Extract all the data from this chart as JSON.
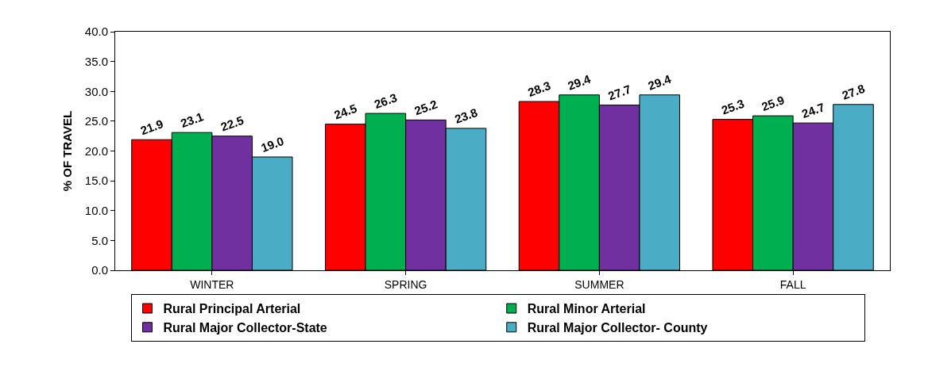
{
  "chart_data": {
    "type": "bar",
    "ylabel": "% OF TRAVEL",
    "categories": [
      "WINTER",
      "SPRING",
      "SUMMER",
      "FALL"
    ],
    "series": [
      {
        "name": "Rural Principal Arterial",
        "color": "#ff0000",
        "values": [
          21.9,
          24.5,
          28.3,
          25.3
        ],
        "value_labels": [
          "21.9",
          "24.5",
          "28.3",
          "25.3"
        ]
      },
      {
        "name": "Rural Minor Arterial",
        "color": "#00b050",
        "values": [
          23.1,
          26.3,
          29.4,
          25.9
        ],
        "value_labels": [
          "23.1",
          "26.3",
          "29.4",
          "25.9"
        ]
      },
      {
        "name": "Rural Major Collector-State",
        "color": "#7030a0",
        "values": [
          22.5,
          25.2,
          27.7,
          24.7
        ],
        "value_labels": [
          "22.5",
          "25.2",
          "27.7",
          "24.7"
        ]
      },
      {
        "name": "Rural Major Collector- County",
        "color": "#4bacc6",
        "values": [
          19.0,
          23.8,
          29.4,
          27.8
        ],
        "value_labels": [
          "19.0",
          "23.8",
          "29.4",
          "27.8"
        ]
      }
    ],
    "ylim": [
      0,
      40
    ],
    "yticks": [
      {
        "value": 0,
        "label": "0.0"
      },
      {
        "value": 5,
        "label": "5.0"
      },
      {
        "value": 10,
        "label": "10.0"
      },
      {
        "value": 15,
        "label": "15.0"
      },
      {
        "value": 20,
        "label": "20.0"
      },
      {
        "value": 25,
        "label": "25.0"
      },
      {
        "value": 30,
        "label": "30.0"
      },
      {
        "value": 35,
        "label": "35.0"
      },
      {
        "value": 40,
        "label": "40.0"
      }
    ],
    "grid": false,
    "legend": "bottom"
  }
}
